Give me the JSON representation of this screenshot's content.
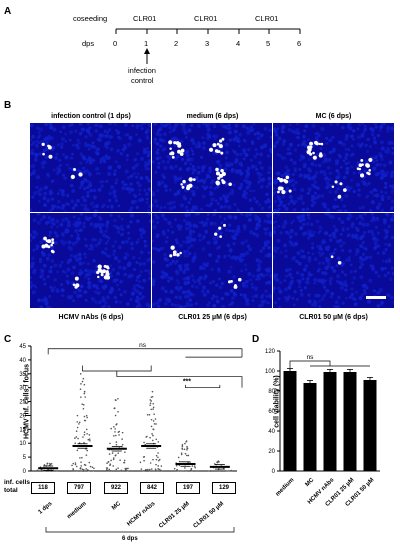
{
  "panels": {
    "A": "A",
    "B": "B",
    "C": "C",
    "D": "D"
  },
  "timeline": {
    "coseeding": "coseeding",
    "dps": "dps",
    "treatments": [
      "CLR01",
      "CLR01",
      "CLR01"
    ],
    "ticks": [
      "0",
      "1",
      "2",
      "3",
      "4",
      "5",
      "6"
    ],
    "infection": "infection",
    "control": "control"
  },
  "micrographs": {
    "row1": [
      "infection control (1 dps)",
      "medium (6 dps)",
      "MC (6 dps)"
    ],
    "row2": [
      "HCMV nAbs (6 dps)",
      "CLR01 25 µM (6 dps)",
      "CLR01 50 µM (6 dps)"
    ]
  },
  "colors": {
    "nuclei": "#1020c8",
    "infected": "#ffffff",
    "background": "#0a0a9a"
  },
  "chart_data": [
    {
      "type": "scatter",
      "ylabel": "HCMV inf. cells / focus",
      "ylim": [
        0,
        45
      ],
      "yticks": [
        "0",
        "5",
        "10",
        "15",
        "20",
        "25",
        "30",
        "35",
        "40",
        "45"
      ],
      "categories": [
        "1 dps",
        "medium",
        "MC",
        "HCMV nAbs",
        "CLR01 25 µM",
        "CLR01 50 µM"
      ],
      "means": [
        1,
        9,
        8,
        9,
        2.5,
        1.5
      ],
      "maxima": [
        3,
        35,
        28,
        29,
        12,
        4
      ],
      "inf_cells_label": "inf. cells",
      "total_label": "total",
      "totals": [
        "118",
        "797",
        "922",
        "842",
        "197",
        "129"
      ],
      "group_label": "6 dps",
      "significance": [
        "ns",
        "***"
      ]
    },
    {
      "type": "bar",
      "ylabel": "cell viability (%)",
      "ylim": [
        0,
        120
      ],
      "yticks": [
        "0",
        "20",
        "40",
        "60",
        "80",
        "100",
        "120"
      ],
      "categories": [
        "medium",
        "MC",
        "HCMV nAbs",
        "CLR01 25 µM",
        "CLR01 50 µM"
      ],
      "values": [
        100,
        88,
        99,
        99,
        91
      ],
      "significance": [
        "ns"
      ]
    }
  ]
}
